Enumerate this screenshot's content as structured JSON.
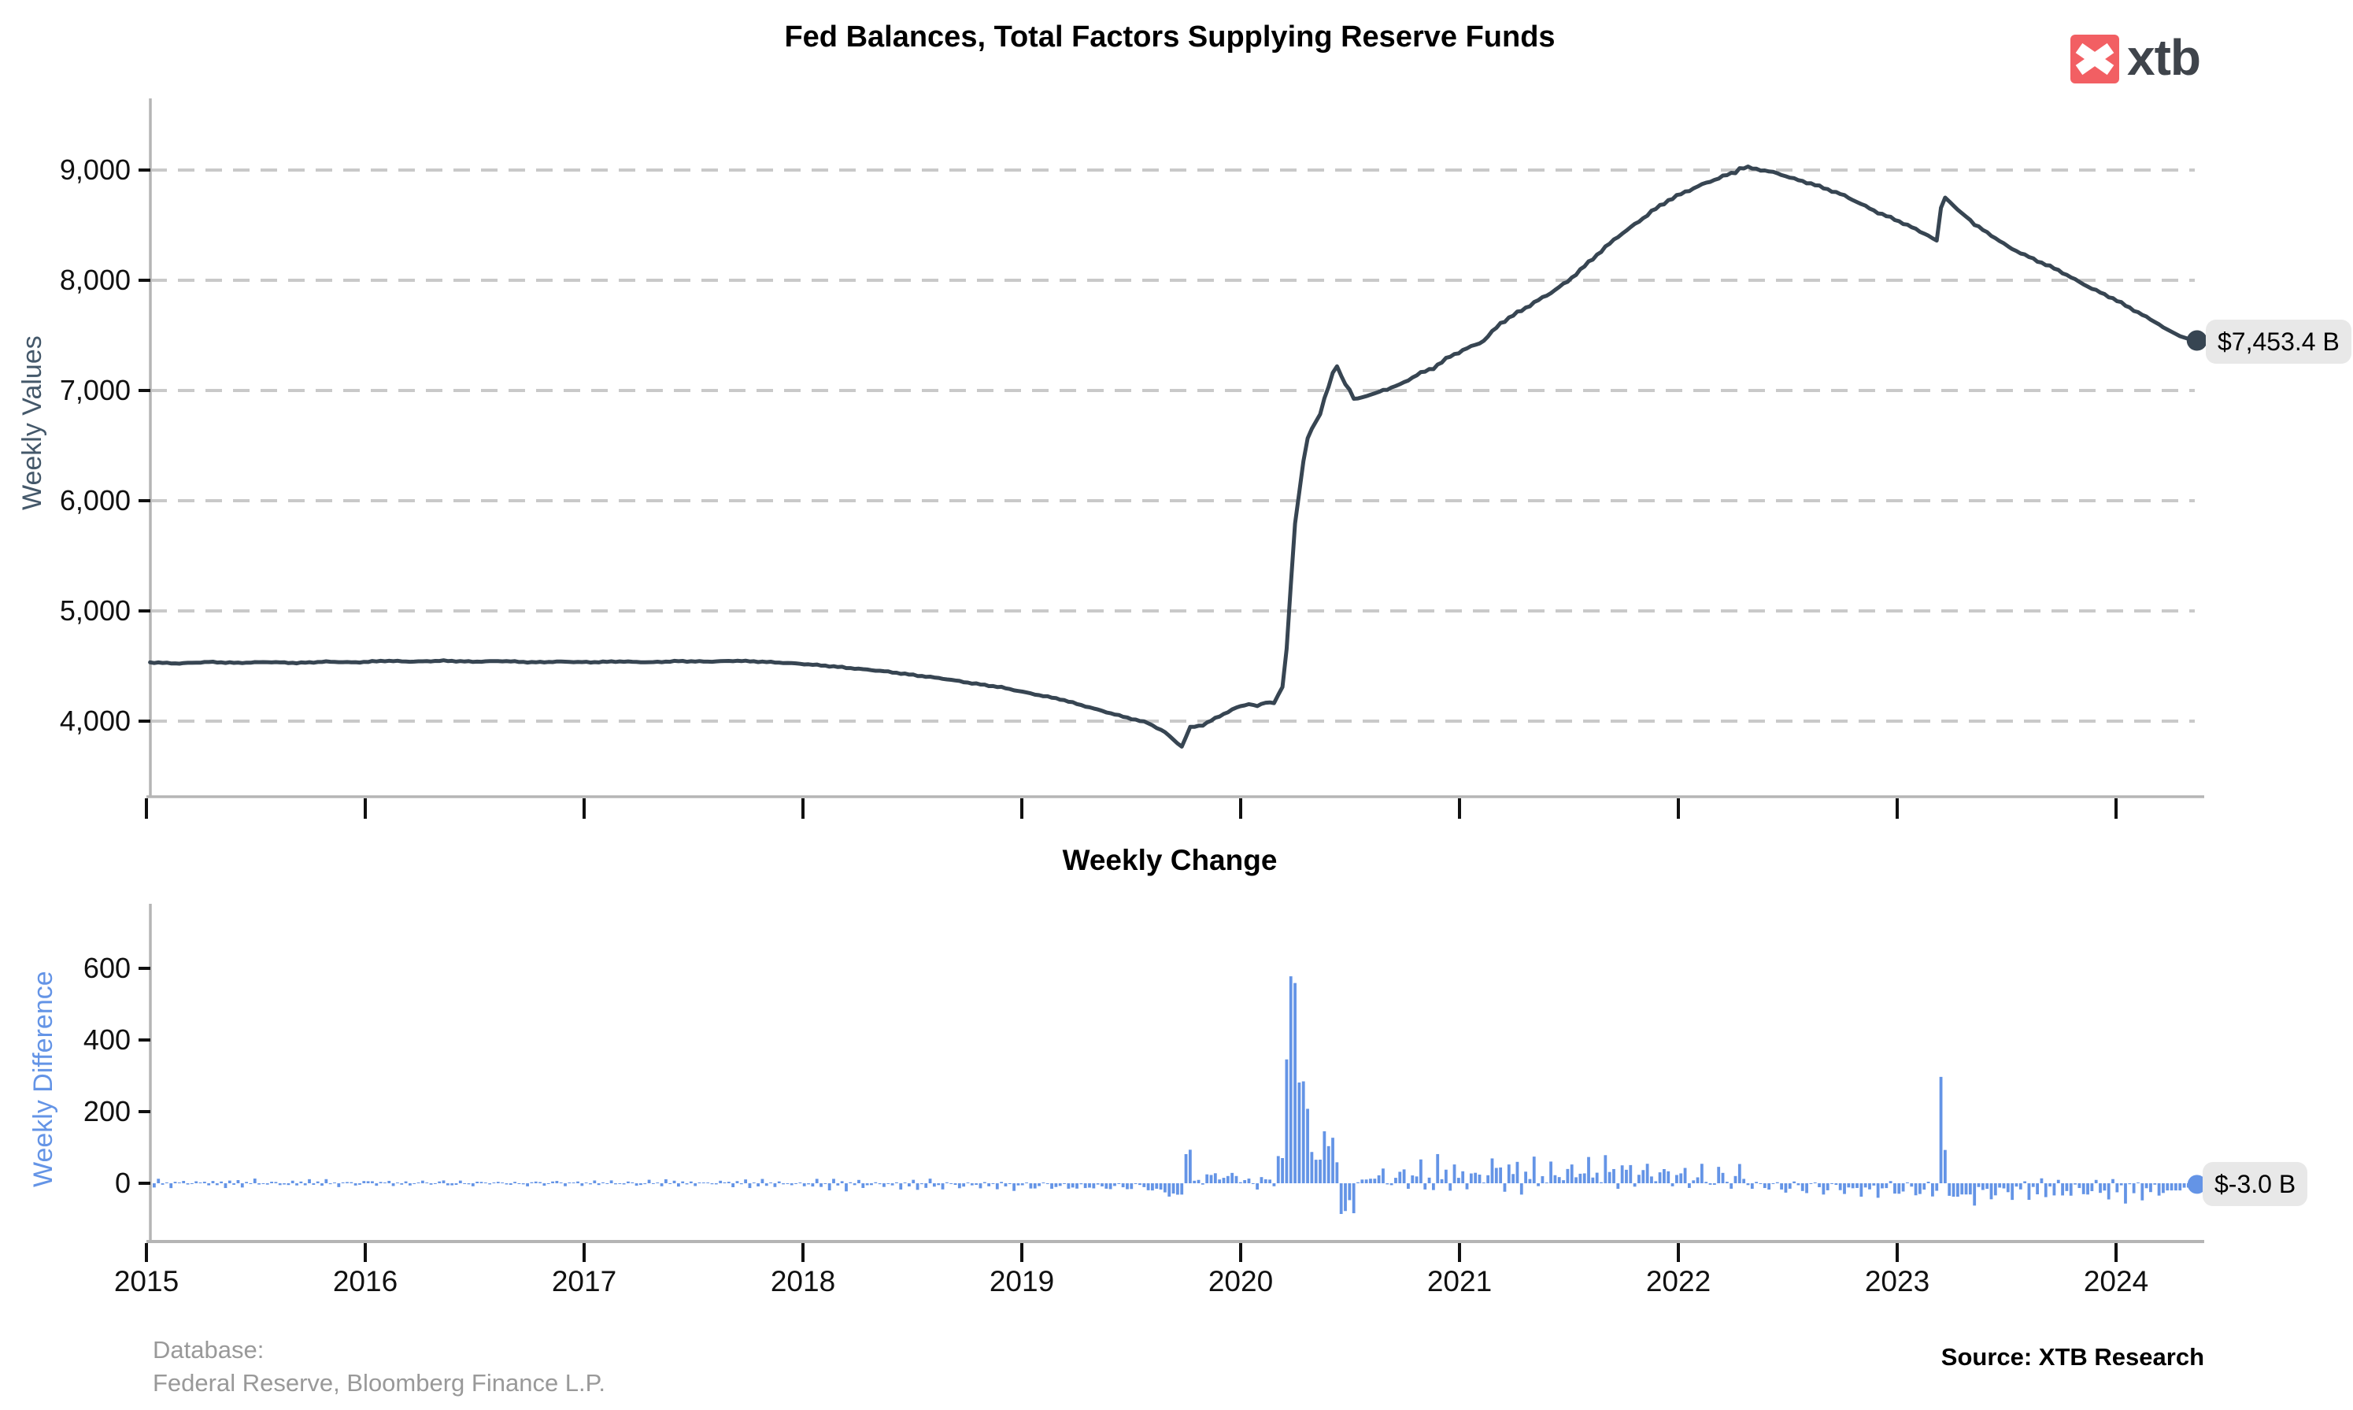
{
  "branding": {
    "logo_text": "xtb",
    "logo_square_color": "#f25f63",
    "logo_text_color": "#3f444b"
  },
  "colors": {
    "line": "#374552",
    "bars": "#6494e6",
    "grid": "#c9c9c9",
    "axis": "#b5b5b5",
    "tick": "#111111",
    "tick_label": "#111111",
    "badge_bg": "#e8e8e8",
    "ylabel_top": "#44586a",
    "ylabel_bottom": "#6494e6",
    "footer_gray": "#999999"
  },
  "footer": {
    "database_label": "Database:",
    "database_sources": "Federal Reserve, Bloomberg Finance L.P.",
    "source_note": "Source: XTB Research"
  },
  "chart_data": [
    {
      "type": "line",
      "title": "Fed Balances, Total Factors Supplying Reserve Funds",
      "ylabel": "Weekly Values",
      "unit": "$ billions",
      "frequency": "weekly",
      "grid": "horizontal dashed",
      "legend_position": "none",
      "x_range": [
        2015.0,
        2024.42
      ],
      "ylim": [
        3350,
        9550
      ],
      "yticks": [
        {
          "value": 4000,
          "label": "4,000"
        },
        {
          "value": 5000,
          "label": "5,000"
        },
        {
          "value": 6000,
          "label": "6,000"
        },
        {
          "value": 7000,
          "label": "7,000"
        },
        {
          "value": 8000,
          "label": "8,000"
        },
        {
          "value": 9000,
          "label": "9,000"
        }
      ],
      "xticks": [
        {
          "value": 2015,
          "label": "2015"
        },
        {
          "value": 2016,
          "label": "2016"
        },
        {
          "value": 2017,
          "label": "2017"
        },
        {
          "value": 2018,
          "label": "2018"
        },
        {
          "value": 2019,
          "label": "2019"
        },
        {
          "value": 2020,
          "label": "2020"
        },
        {
          "value": 2021,
          "label": "2021"
        },
        {
          "value": 2022,
          "label": "2022"
        },
        {
          "value": 2023,
          "label": "2023"
        },
        {
          "value": 2024,
          "label": "2024"
        }
      ],
      "end_label": "$7,453.4 B",
      "last_value": 7453.4,
      "peak_value": 9015,
      "min_value": 3768,
      "series_anchors": [
        [
          "2015-01-07",
          4536
        ],
        [
          "2015-02-25",
          4528
        ],
        [
          "2015-04-15",
          4541
        ],
        [
          "2015-06-03",
          4532
        ],
        [
          "2015-07-22",
          4539
        ],
        [
          "2015-09-09",
          4528
        ],
        [
          "2015-10-28",
          4538
        ],
        [
          "2015-12-16",
          4530
        ],
        [
          "2016-02-03",
          4543
        ],
        [
          "2016-03-23",
          4535
        ],
        [
          "2016-05-11",
          4544
        ],
        [
          "2016-06-29",
          4536
        ],
        [
          "2016-08-17",
          4544
        ],
        [
          "2016-10-05",
          4534
        ],
        [
          "2016-11-23",
          4542
        ],
        [
          "2017-01-11",
          4538
        ],
        [
          "2017-03-01",
          4546
        ],
        [
          "2017-04-19",
          4538
        ],
        [
          "2017-06-07",
          4548
        ],
        [
          "2017-07-26",
          4542
        ],
        [
          "2017-09-13",
          4548
        ],
        [
          "2017-11-01",
          4536
        ],
        [
          "2017-12-20",
          4520
        ],
        [
          "2018-02-07",
          4498
        ],
        [
          "2018-03-28",
          4472
        ],
        [
          "2018-05-16",
          4448
        ],
        [
          "2018-07-04",
          4415
        ],
        [
          "2018-08-22",
          4385
        ],
        [
          "2018-10-10",
          4345
        ],
        [
          "2018-11-28",
          4310
        ],
        [
          "2019-01-16",
          4255
        ],
        [
          "2019-03-06",
          4205
        ],
        [
          "2019-04-24",
          4130
        ],
        [
          "2019-06-12",
          4055
        ],
        [
          "2019-07-31",
          3985
        ],
        [
          "2019-08-28",
          3900
        ],
        [
          "2019-09-18",
          3800
        ],
        [
          "2019-09-25",
          3768
        ],
        [
          "2019-10-02",
          3855
        ],
        [
          "2019-10-09",
          3942
        ],
        [
          "2019-10-30",
          3962
        ],
        [
          "2019-11-27",
          4042
        ],
        [
          "2019-12-25",
          4118
        ],
        [
          "2020-01-15",
          4152
        ],
        [
          "2020-01-29",
          4130
        ],
        [
          "2020-02-12",
          4165
        ],
        [
          "2020-02-26",
          4162
        ],
        [
          "2020-03-04",
          4242
        ],
        [
          "2020-03-11",
          4312
        ],
        [
          "2020-03-18",
          4668
        ],
        [
          "2020-03-25",
          5254
        ],
        [
          "2020-04-01",
          5812
        ],
        [
          "2020-04-08",
          6083
        ],
        [
          "2020-04-15",
          6368
        ],
        [
          "2020-04-22",
          6573
        ],
        [
          "2020-04-29",
          6656
        ],
        [
          "2020-05-06",
          6721
        ],
        [
          "2020-05-13",
          6787
        ],
        [
          "2020-05-20",
          6935
        ],
        [
          "2020-05-27",
          7037
        ],
        [
          "2020-06-03",
          7165
        ],
        [
          "2020-06-10",
          7221
        ],
        [
          "2020-06-17",
          7130
        ],
        [
          "2020-06-24",
          7053
        ],
        [
          "2020-07-01",
          7007
        ],
        [
          "2020-07-08",
          6922
        ],
        [
          "2020-07-15",
          6928
        ],
        [
          "2020-07-29",
          6949
        ],
        [
          "2020-08-26",
          7000
        ],
        [
          "2020-09-23",
          7053
        ],
        [
          "2020-10-21",
          7145
        ],
        [
          "2020-11-18",
          7212
        ],
        [
          "2020-12-16",
          7320
        ],
        [
          "2021-01-13",
          7390
        ],
        [
          "2021-02-10",
          7460
        ],
        [
          "2021-03-10",
          7620
        ],
        [
          "2021-04-07",
          7715
        ],
        [
          "2021-05-05",
          7805
        ],
        [
          "2021-06-02",
          7895
        ],
        [
          "2021-06-30",
          7995
        ],
        [
          "2021-07-28",
          8130
        ],
        [
          "2021-08-25",
          8265
        ],
        [
          "2021-09-22",
          8395
        ],
        [
          "2021-10-20",
          8500
        ],
        [
          "2021-11-17",
          8615
        ],
        [
          "2021-12-15",
          8715
        ],
        [
          "2022-01-12",
          8790
        ],
        [
          "2022-02-09",
          8855
        ],
        [
          "2022-03-09",
          8915
        ],
        [
          "2022-04-06",
          8970
        ],
        [
          "2022-04-13",
          9002
        ],
        [
          "2022-04-27",
          9015
        ],
        [
          "2022-05-18",
          8995
        ],
        [
          "2022-06-15",
          8965
        ],
        [
          "2022-07-13",
          8915
        ],
        [
          "2022-08-10",
          8875
        ],
        [
          "2022-09-07",
          8825
        ],
        [
          "2022-10-05",
          8770
        ],
        [
          "2022-11-02",
          8695
        ],
        [
          "2022-11-30",
          8620
        ],
        [
          "2022-12-28",
          8560
        ],
        [
          "2023-01-25",
          8490
        ],
        [
          "2023-02-22",
          8415
        ],
        [
          "2023-03-08",
          8360
        ],
        [
          "2023-03-15",
          8657
        ],
        [
          "2023-03-22",
          8750
        ],
        [
          "2023-03-29",
          8715
        ],
        [
          "2023-04-12",
          8640
        ],
        [
          "2023-05-10",
          8515
        ],
        [
          "2023-06-07",
          8415
        ],
        [
          "2023-07-05",
          8310
        ],
        [
          "2023-08-02",
          8232
        ],
        [
          "2023-08-30",
          8160
        ],
        [
          "2023-09-27",
          8090
        ],
        [
          "2023-10-25",
          8002
        ],
        [
          "2023-11-22",
          7920
        ],
        [
          "2023-12-27",
          7828
        ],
        [
          "2024-01-24",
          7742
        ],
        [
          "2024-02-21",
          7655
        ],
        [
          "2024-03-20",
          7572
        ],
        [
          "2024-04-17",
          7492
        ],
        [
          "2024-05-01",
          7468
        ],
        [
          "2024-05-08",
          7456.4
        ],
        [
          "2024-05-15",
          7453.4
        ]
      ]
    },
    {
      "type": "bar",
      "title": "Weekly Change",
      "ylabel": "Weekly Difference",
      "unit": "$ billions",
      "derived": "weekly first difference of panel 1 series",
      "grid": "off",
      "ylim": [
        -140,
        760
      ],
      "yticks": [
        {
          "value": 0,
          "label": "0"
        },
        {
          "value": 200,
          "label": "200"
        },
        {
          "value": 400,
          "label": "400"
        },
        {
          "value": 600,
          "label": "600"
        }
      ],
      "end_label": "$-3.0 B",
      "last_value": -3.0,
      "notable_bars": [
        [
          "2020-03-18",
          356
        ],
        [
          "2020-03-25",
          586
        ],
        [
          "2020-04-01",
          558
        ],
        [
          "2020-04-15",
          285
        ],
        [
          "2023-03-15",
          297
        ],
        [
          "2024-05-15",
          -3.0
        ]
      ]
    }
  ]
}
